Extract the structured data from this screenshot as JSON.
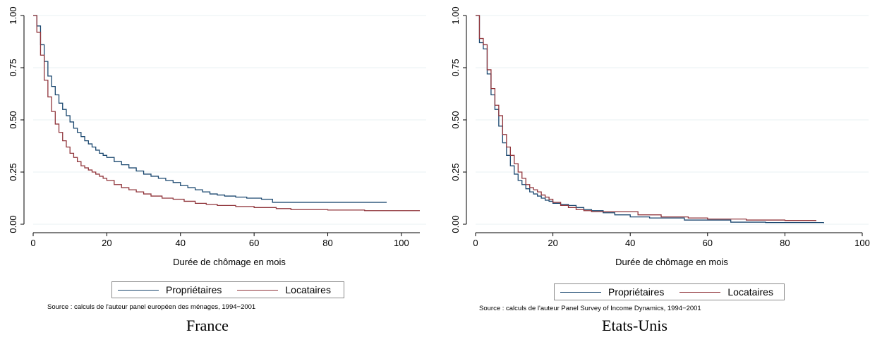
{
  "colors": {
    "proprietaires": "#1a476f",
    "locataires": "#90353b",
    "grid": "#eaf2f3"
  },
  "chart_data": [
    {
      "type": "line",
      "step": true,
      "caption": "France",
      "xlabel": "Durée de chômage en mois",
      "xlim": [
        0,
        105
      ],
      "ylim": [
        0,
        1
      ],
      "xticks": [
        "0",
        "20",
        "40",
        "60",
        "80",
        "100"
      ],
      "yticks": [
        "0.00",
        "0.25",
        "0.50",
        "0.75",
        "1.00"
      ],
      "legend": [
        "Propriétaires",
        "Locataires"
      ],
      "source": "Source : calculs de l'auteur panel européen des ménages, 1994−2001",
      "series": [
        {
          "name": "Propriétaires",
          "x": [
            0,
            1,
            2,
            3,
            4,
            5,
            6,
            7,
            8,
            9,
            10,
            11,
            12,
            13,
            14,
            15,
            16,
            17,
            18,
            19,
            20,
            22,
            24,
            26,
            28,
            30,
            32,
            34,
            36,
            38,
            40,
            42,
            44,
            46,
            48,
            50,
            52,
            55,
            58,
            62,
            65,
            70,
            80,
            90,
            96
          ],
          "y": [
            1.0,
            0.95,
            0.86,
            0.78,
            0.71,
            0.66,
            0.62,
            0.58,
            0.55,
            0.52,
            0.49,
            0.46,
            0.44,
            0.42,
            0.4,
            0.385,
            0.37,
            0.355,
            0.34,
            0.33,
            0.32,
            0.3,
            0.285,
            0.27,
            0.255,
            0.24,
            0.23,
            0.22,
            0.21,
            0.2,
            0.185,
            0.175,
            0.165,
            0.155,
            0.145,
            0.14,
            0.135,
            0.13,
            0.125,
            0.12,
            0.105,
            0.105,
            0.105,
            0.105,
            0.105
          ]
        },
        {
          "name": "Locataires",
          "x": [
            0,
            1,
            2,
            3,
            4,
            5,
            6,
            7,
            8,
            9,
            10,
            11,
            12,
            13,
            14,
            15,
            16,
            17,
            18,
            19,
            20,
            22,
            24,
            26,
            28,
            30,
            32,
            35,
            38,
            41,
            44,
            47,
            50,
            55,
            60,
            66,
            70,
            80,
            90,
            105
          ],
          "y": [
            1.0,
            0.92,
            0.81,
            0.69,
            0.61,
            0.54,
            0.48,
            0.44,
            0.4,
            0.37,
            0.34,
            0.32,
            0.3,
            0.28,
            0.27,
            0.26,
            0.25,
            0.24,
            0.23,
            0.22,
            0.21,
            0.19,
            0.175,
            0.165,
            0.155,
            0.145,
            0.135,
            0.125,
            0.12,
            0.11,
            0.1,
            0.095,
            0.09,
            0.085,
            0.08,
            0.075,
            0.07,
            0.068,
            0.065,
            0.065
          ]
        }
      ]
    },
    {
      "type": "line",
      "step": true,
      "caption": "Etats-Unis",
      "xlabel": "Durée de chômage en mois",
      "xlim": [
        0,
        100
      ],
      "ylim": [
        0,
        1
      ],
      "xticks": [
        "0",
        "20",
        "40",
        "60",
        "80",
        "100"
      ],
      "yticks": [
        "0.00",
        "0.25",
        "0.50",
        "0.75",
        "1.00"
      ],
      "legend": [
        "Propriétaires",
        "Locataires"
      ],
      "source": "Source : calculs de l'auteur Panel Survey of Income Dynamics, 1994−2001",
      "series": [
        {
          "name": "Propriétaires",
          "x": [
            0,
            1,
            2,
            3,
            4,
            5,
            6,
            7,
            8,
            9,
            10,
            11,
            12,
            13,
            14,
            15,
            16,
            17,
            18,
            19,
            20,
            22,
            24,
            26,
            28,
            30,
            33,
            36,
            40,
            45,
            54,
            66,
            75,
            90
          ],
          "y": [
            1.0,
            0.87,
            0.84,
            0.72,
            0.62,
            0.55,
            0.47,
            0.39,
            0.33,
            0.28,
            0.24,
            0.21,
            0.19,
            0.17,
            0.155,
            0.145,
            0.135,
            0.125,
            0.115,
            0.11,
            0.1,
            0.095,
            0.09,
            0.08,
            0.07,
            0.065,
            0.055,
            0.045,
            0.035,
            0.03,
            0.02,
            0.01,
            0.008,
            0.005
          ]
        },
        {
          "name": "Locataires",
          "x": [
            0,
            1,
            2,
            3,
            4,
            5,
            6,
            7,
            8,
            9,
            10,
            11,
            12,
            13,
            14,
            15,
            16,
            17,
            18,
            19,
            20,
            22,
            24,
            26,
            28,
            30,
            33,
            36,
            42,
            48,
            55,
            60,
            70,
            80,
            88
          ],
          "y": [
            1.0,
            0.89,
            0.86,
            0.74,
            0.65,
            0.57,
            0.52,
            0.43,
            0.37,
            0.33,
            0.29,
            0.25,
            0.22,
            0.19,
            0.175,
            0.165,
            0.155,
            0.14,
            0.13,
            0.12,
            0.105,
            0.09,
            0.08,
            0.07,
            0.065,
            0.06,
            0.06,
            0.06,
            0.045,
            0.035,
            0.03,
            0.025,
            0.02,
            0.018,
            0.015
          ]
        }
      ]
    }
  ]
}
